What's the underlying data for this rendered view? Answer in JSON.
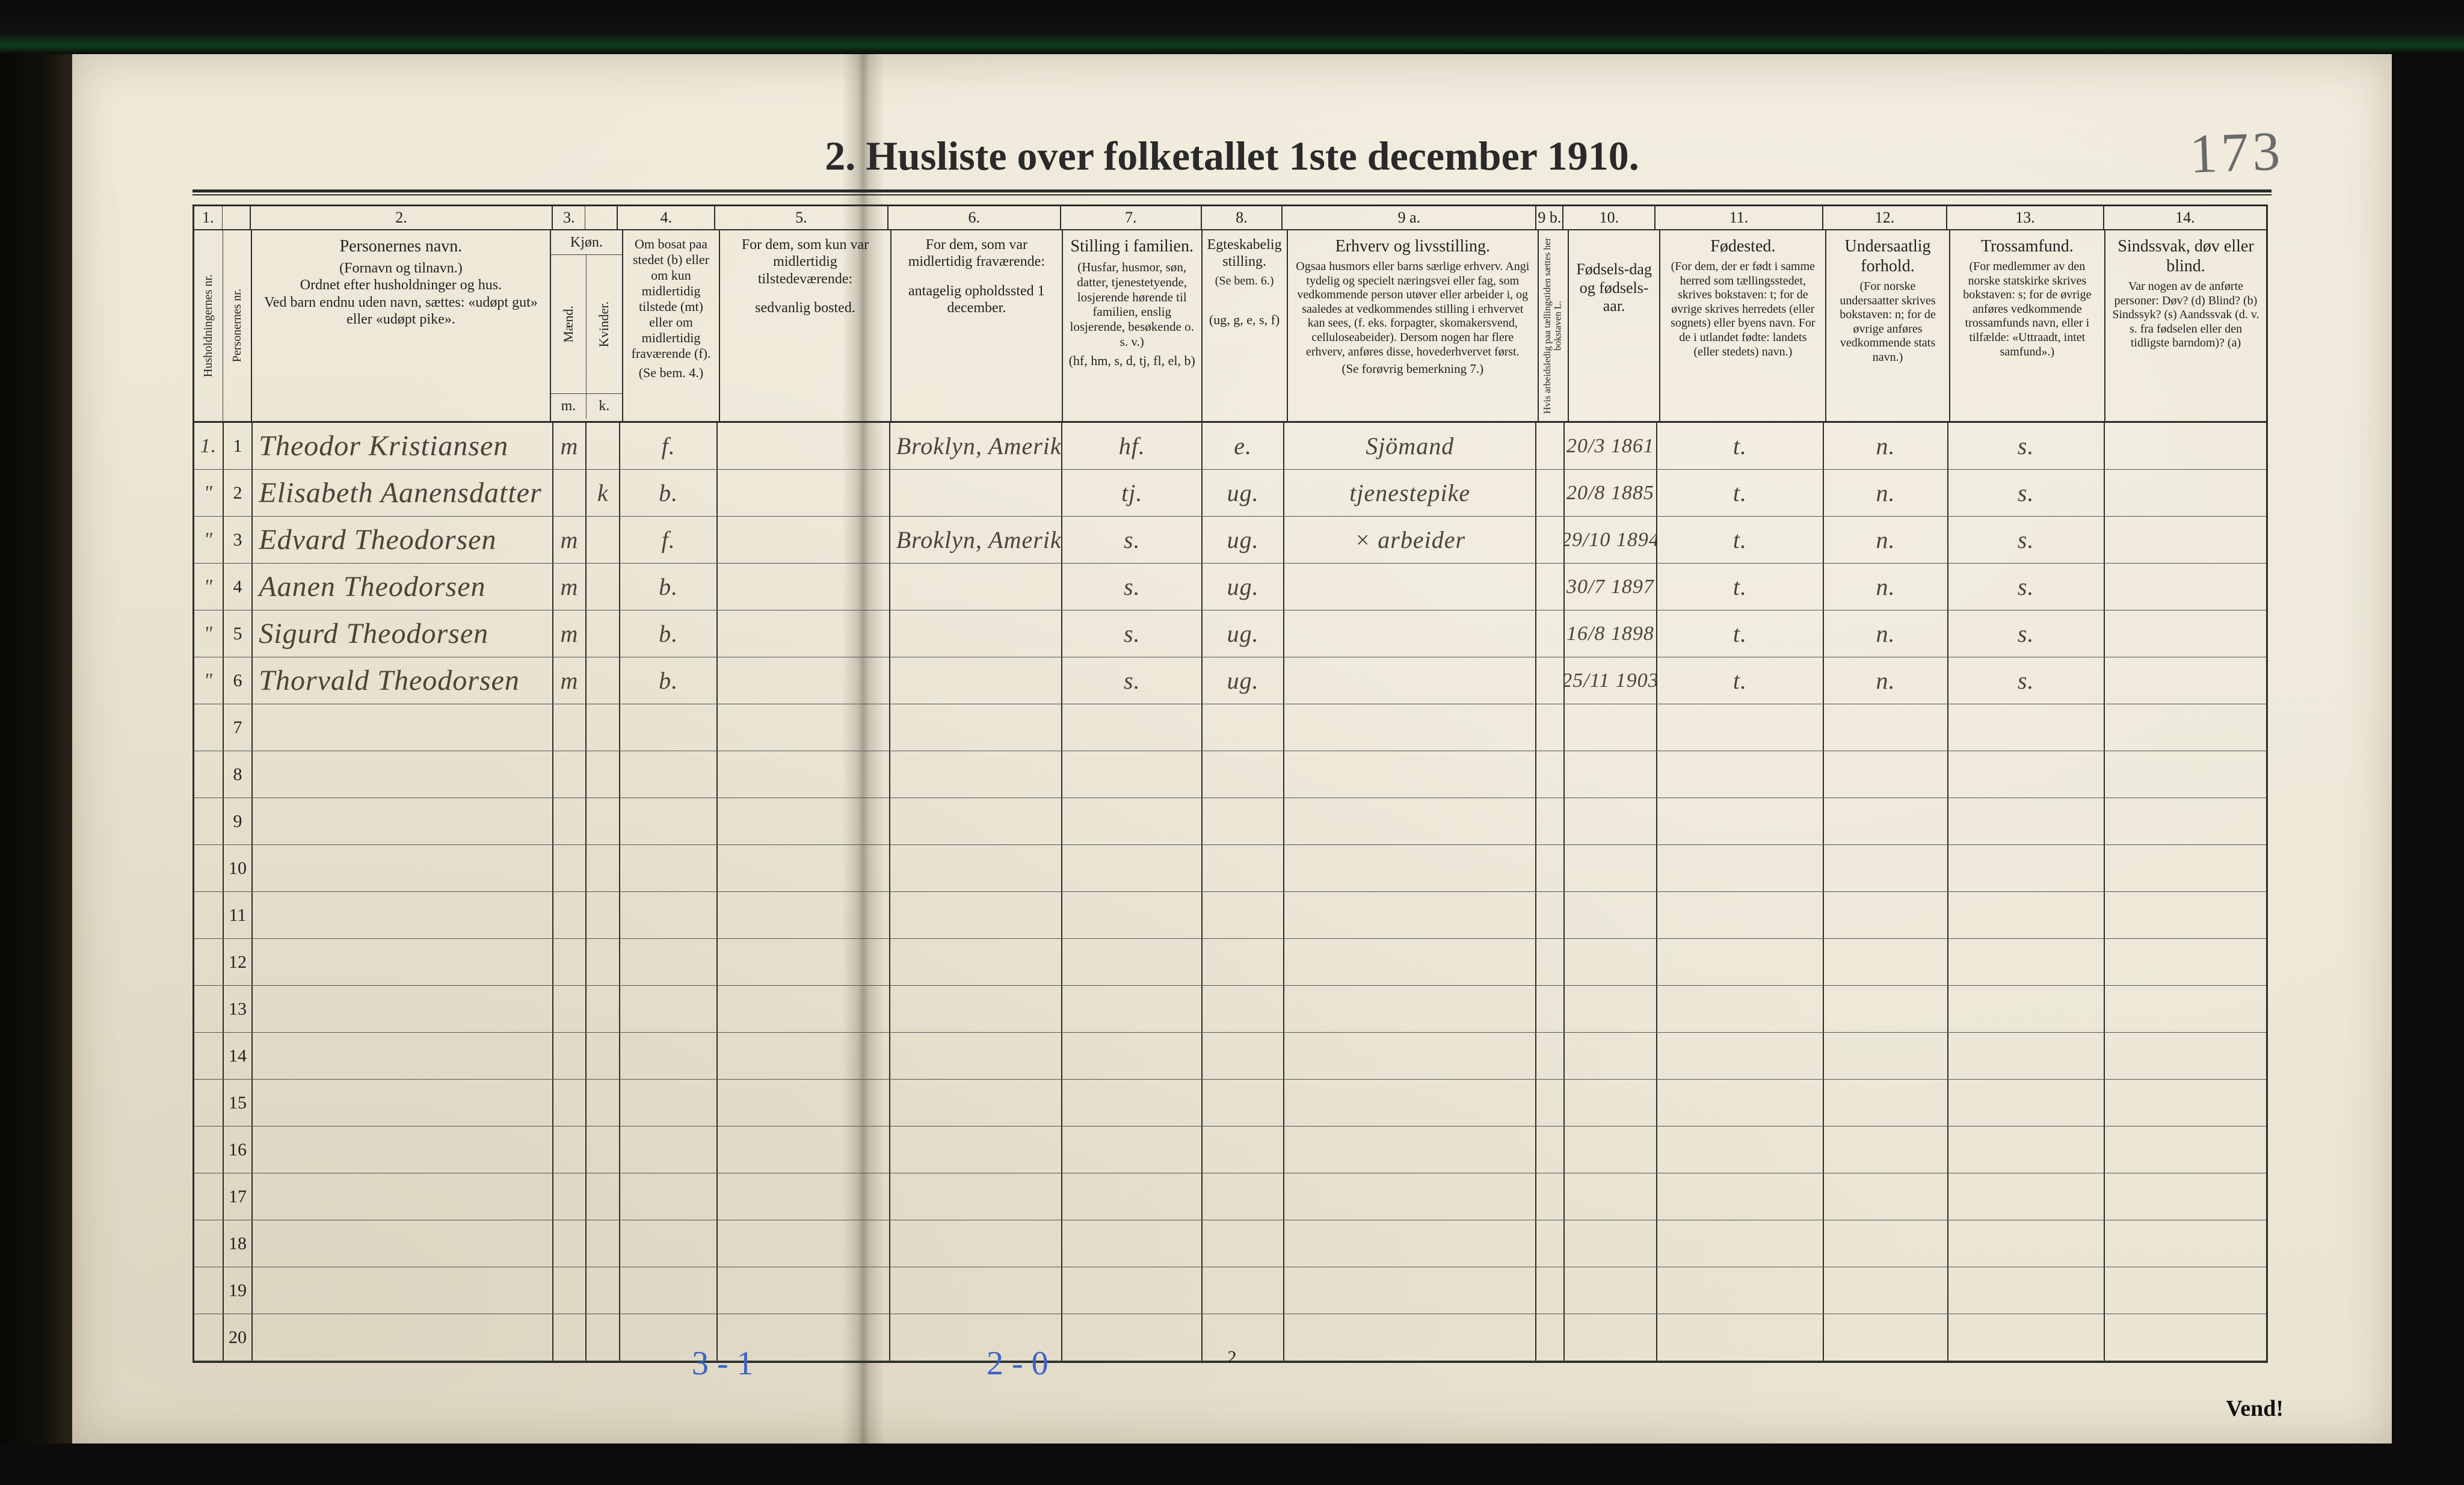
{
  "document": {
    "title": "2.  Husliste over folketallet 1ste december 1910.",
    "handwritten_page_number": "173",
    "printed_foot_page_number": "2",
    "turn_over": "Vend!",
    "footer_annotations": {
      "left": "3 - 1",
      "right": "2 - 0"
    }
  },
  "palette": {
    "paper": "#eee8d8",
    "ink": "#2b2b2b",
    "handwriting": "#4a4438",
    "blue_pencil": "#3a63c9",
    "frame_dark": "#0e0c0a"
  },
  "columns": {
    "numbers": [
      "1.",
      "",
      "2.",
      "3.",
      "",
      "4.",
      "5.",
      "6.",
      "7.",
      "8.",
      "9 a.",
      "9 b.",
      "10.",
      "11.",
      "12.",
      "13.",
      "14."
    ],
    "c1": {
      "left_vert": "Husholdningernes nr.",
      "right_vert": "Personernes nr."
    },
    "c2": {
      "main": "Personernes navn.",
      "sub1": "(Fornavn og tilnavn.)",
      "sub2": "Ordnet efter husholdninger og hus.",
      "sub3": "Ved barn endnu uden navn, sættes: «udøpt gut» eller «udøpt pike»."
    },
    "c3": {
      "main": "Kjøn.",
      "sub_m": "Mænd.",
      "sub_k": "Kvinder.",
      "foot_m": "m.",
      "foot_k": "k."
    },
    "c4": {
      "l1": "Om bosat paa stedet (b) eller om kun midlertidig tilstede (mt) eller om midlertidig fraværende (f).",
      "l2": "(Se bem. 4.)"
    },
    "c5": {
      "l1": "For dem, som kun var midlertidig tilstedeværende:",
      "l2": "sedvanlig bosted."
    },
    "c6": {
      "l1": "For dem, som var midlertidig fraværende:",
      "l2": "antagelig opholdssted 1 december."
    },
    "c7": {
      "main": "Stilling i familien.",
      "sub": "(Husfar, husmor, søn, datter, tjenestetyende, losjerende hørende til familien, enslig losjerende, besøkende o. s. v.)",
      "foot": "(hf, hm, s, d, tj, fl, el, b)"
    },
    "c8": {
      "main": "Egteskabelig stilling.",
      "sub": "(Se bem. 6.)",
      "foot": "(ug, g, e, s, f)"
    },
    "c9a": {
      "main": "Erhverv og livsstilling.",
      "sub": "Ogsaa husmors eller barns særlige erhverv. Angi tydelig og specielt næringsvei eller fag, som vedkommende person utøver eller arbeider i, og saaledes at vedkommendes stilling i erhvervet kan sees, (f. eks. forpagter, skomakersvend, celluloseabeider). Dersom nogen har flere erhverv, anføres disse, hovederhvervet først.",
      "foot": "(Se forøvrig bemerkning 7.)"
    },
    "c9b": {
      "vert": "Hvis arbeidsledig paa tællingstiden sættes her bokstaven L."
    },
    "c10": {
      "main": "Fødsels-dag og fødsels-aar."
    },
    "c11": {
      "main": "Fødested.",
      "sub": "(For dem, der er født i samme herred som tællingsstedet, skrives bokstaven: t; for de øvrige skrives herredets (eller sognets) eller byens navn. For de i utlandet fødte: landets (eller stedets) navn.)"
    },
    "c12": {
      "main": "Undersaatlig forhold.",
      "sub": "(For norske undersaatter skrives bokstaven: n; for de øvrige anføres vedkommende stats navn.)"
    },
    "c13": {
      "main": "Trossamfund.",
      "sub": "(For medlemmer av den norske statskirke skrives bokstaven: s; for de øvrige anføres vedkommende trossamfunds navn, eller i tilfælde: «Uttraadt, intet samfund».)"
    },
    "c14": {
      "main": "Sindssvak, døv eller blind.",
      "sub": "Var nogen av de anførte personer: Døv? (d)  Blind? (b)  Sindssyk? (s)  Aandssvak (d. v. s. fra fødselen eller den tidligste barndom)? (a)"
    }
  },
  "rows": [
    {
      "hh": "1.",
      "pn": "1",
      "name": "Theodor Kristiansen",
      "sex_m": "m",
      "sex_k": "",
      "c4": "f.",
      "c5": "",
      "c6": "Broklyn, Amerika",
      "c7": "hf.",
      "c8": "e.",
      "c9a": "Sjömand",
      "c9b": "",
      "c10": "20/3 1861",
      "c11": "t.",
      "c12": "n.",
      "c13": "s.",
      "c14": ""
    },
    {
      "hh": "\"",
      "pn": "2",
      "name": "Elisabeth Aanensdatter",
      "sex_m": "",
      "sex_k": "k",
      "c4": "b.",
      "c5": "",
      "c6": "",
      "c7": "tj.",
      "c8": "ug.",
      "c9a": "tjenestepike",
      "c9b": "",
      "c10": "20/8 1885",
      "c11": "t.",
      "c12": "n.",
      "c13": "s.",
      "c14": ""
    },
    {
      "hh": "\"",
      "pn": "3",
      "name": "Edvard Theodorsen",
      "sex_m": "m",
      "sex_k": "",
      "c4": "f.",
      "c5": "",
      "c6": "Broklyn, Amerika",
      "c7": "s.",
      "c8": "ug.",
      "c9a": "×   arbeider",
      "c9b": "",
      "c10": "29/10 1894",
      "c11": "t.",
      "c12": "n.",
      "c13": "s.",
      "c14": ""
    },
    {
      "hh": "\"",
      "pn": "4",
      "name": "Aanen Theodorsen",
      "sex_m": "m",
      "sex_k": "",
      "c4": "b.",
      "c5": "",
      "c6": "",
      "c7": "s.",
      "c8": "ug.",
      "c9a": "",
      "c9b": "",
      "c10": "30/7 1897",
      "c11": "t.",
      "c12": "n.",
      "c13": "s.",
      "c14": ""
    },
    {
      "hh": "\"",
      "pn": "5",
      "name": "Sigurd Theodorsen",
      "sex_m": "m",
      "sex_k": "",
      "c4": "b.",
      "c5": "",
      "c6": "",
      "c7": "s.",
      "c8": "ug.",
      "c9a": "",
      "c9b": "",
      "c10": "16/8 1898",
      "c11": "t.",
      "c12": "n.",
      "c13": "s.",
      "c14": ""
    },
    {
      "hh": "\"",
      "pn": "6",
      "name": "Thorvald Theodorsen",
      "sex_m": "m",
      "sex_k": "",
      "c4": "b.",
      "c5": "",
      "c6": "",
      "c7": "s.",
      "c8": "ug.",
      "c9a": "",
      "c9b": "",
      "c10": "25/11 1903",
      "c11": "t.",
      "c12": "n.",
      "c13": "s.",
      "c14": ""
    }
  ],
  "blank_row_numbers": [
    "7",
    "8",
    "9",
    "10",
    "11",
    "12",
    "13",
    "14",
    "15",
    "16",
    "17",
    "18",
    "19",
    "20"
  ]
}
